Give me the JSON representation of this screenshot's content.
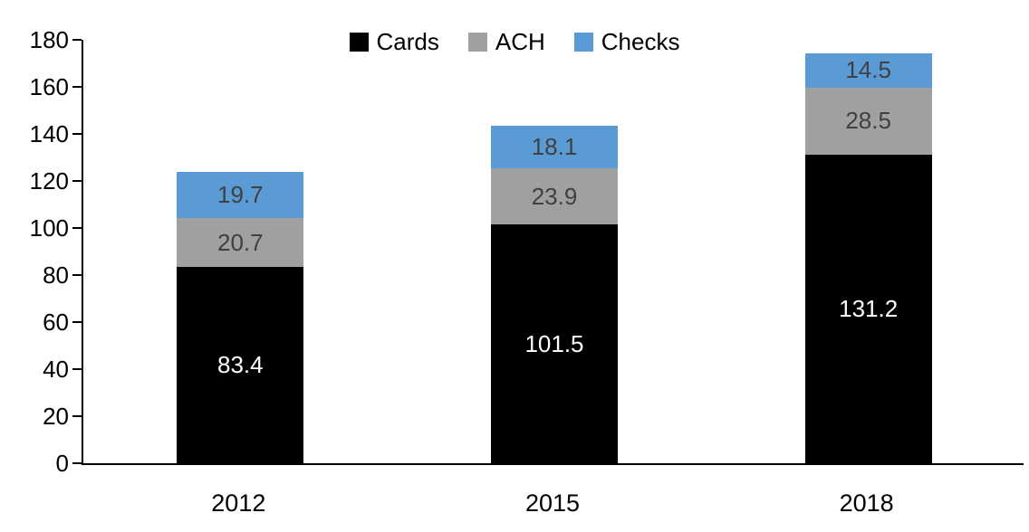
{
  "chart_data": {
    "type": "bar",
    "stacked": true,
    "title": "",
    "xlabel": "",
    "ylabel": "",
    "categories": [
      "2012",
      "2015",
      "2018"
    ],
    "series": [
      {
        "name": "Cards",
        "color": "#000000",
        "label_color": "#ffffff",
        "values": [
          83.4,
          101.5,
          131.2
        ]
      },
      {
        "name": "ACH",
        "color": "#a0a0a0",
        "label_color": "#404040",
        "values": [
          20.7,
          23.9,
          28.5
        ]
      },
      {
        "name": "Checks",
        "color": "#5b9bd5",
        "label_color": "#404040",
        "values": [
          19.7,
          18.1,
          14.5
        ]
      }
    ],
    "totals": [
      123.8,
      143.5,
      174.2
    ],
    "ylim": [
      0,
      180
    ],
    "ytick_step": 20,
    "yticks": [
      0,
      20,
      40,
      60,
      80,
      100,
      120,
      140,
      160,
      180
    ],
    "grid": false,
    "legend_position": "top-center",
    "axis_color": "#000000",
    "value_label_decimals": 1
  }
}
